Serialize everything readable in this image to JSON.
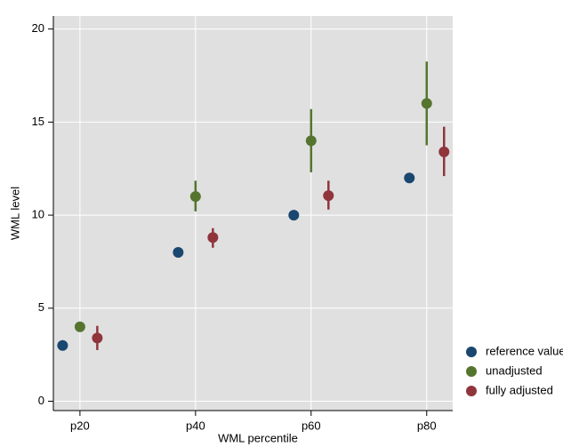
{
  "chart_data": {
    "type": "scatter",
    "x_label": "WML percentile",
    "y_label": "WML level",
    "xlim": [
      15.4,
      84.5
    ],
    "ylim": [
      -0.5,
      20.7
    ],
    "xticks": [
      {
        "value": 20,
        "label": "p20"
      },
      {
        "value": 40,
        "label": "p40"
      },
      {
        "value": 60,
        "label": "p60"
      },
      {
        "value": 80,
        "label": "p80"
      }
    ],
    "yticks": [
      0,
      5,
      10,
      15,
      20
    ],
    "grid": true,
    "legend": "right",
    "series": [
      {
        "name": "reference values",
        "color": "#1a476f",
        "x": [
          17,
          37,
          57,
          77
        ],
        "values": [
          3,
          8,
          10,
          12
        ]
      },
      {
        "name": "unadjusted",
        "color": "#55752f",
        "x": [
          20,
          40,
          60,
          80
        ],
        "values": [
          4,
          11,
          14,
          16
        ],
        "lower": [
          null,
          10.2,
          12.3,
          13.75
        ],
        "upper": [
          null,
          11.85,
          15.7,
          18.25
        ]
      },
      {
        "name": "fully adjusted",
        "color": "#90353b",
        "x": [
          23,
          43,
          63,
          83
        ],
        "values": [
          3.4,
          8.8,
          11.05,
          13.4
        ],
        "lower": [
          2.75,
          8.25,
          10.3,
          12.1
        ],
        "upper": [
          4.05,
          9.3,
          11.85,
          14.75
        ]
      }
    ]
  }
}
